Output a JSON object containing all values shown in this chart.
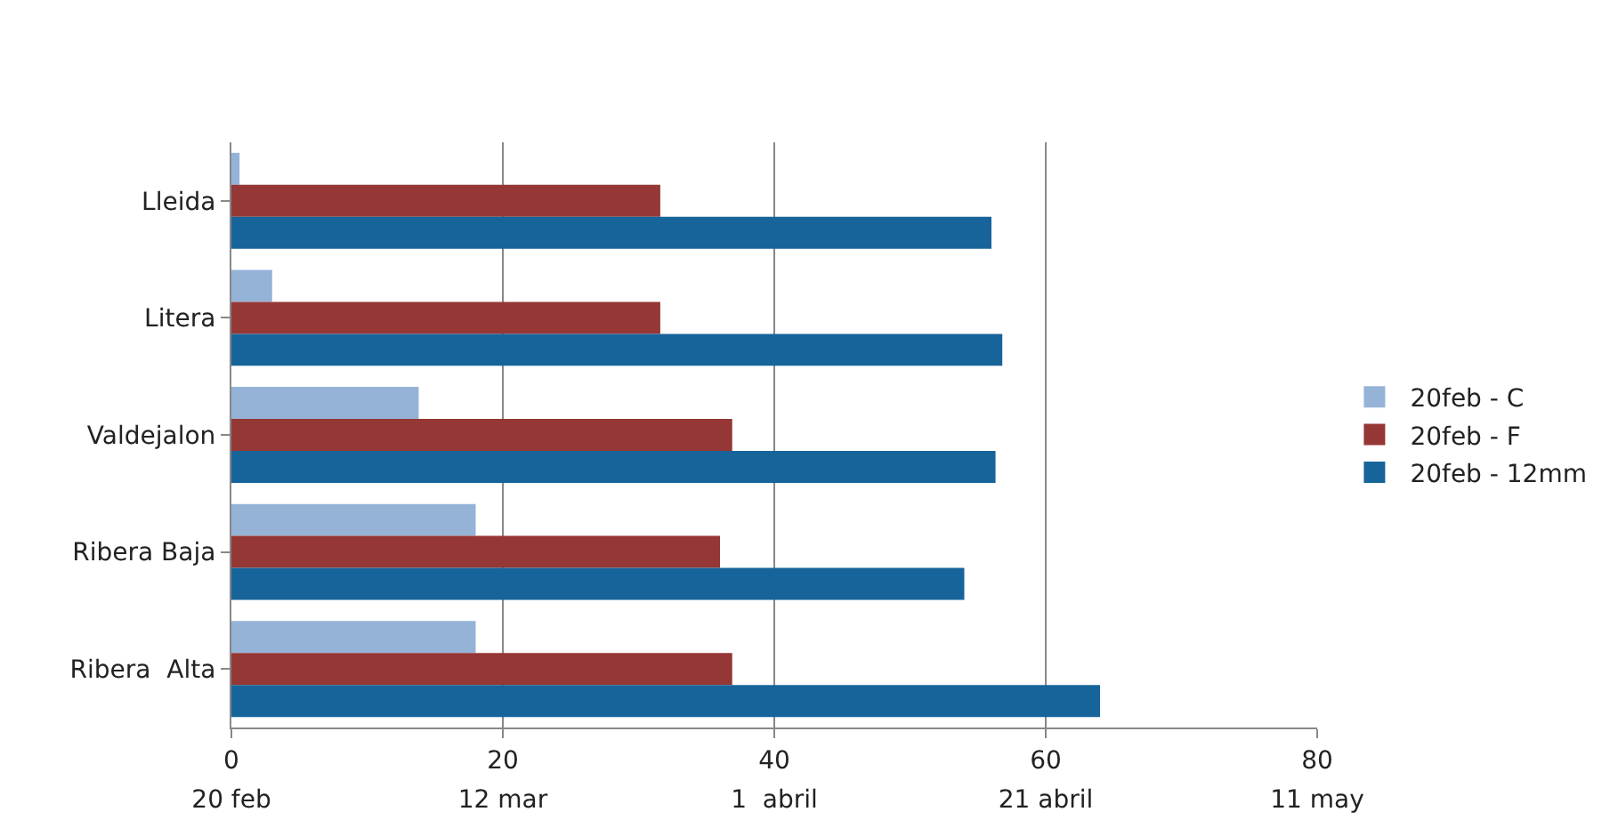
{
  "chart_data": {
    "type": "bar",
    "orientation": "horizontal",
    "categories": [
      "Lleida",
      "Litera",
      "Valdejalon",
      "Ribera Baja",
      "Ribera  Alta"
    ],
    "series": [
      {
        "name": "20feb - C",
        "color": "#95b3d7",
        "values": [
          0.6,
          3,
          13.8,
          18,
          18
        ]
      },
      {
        "name": "20feb - F",
        "color": "#953735",
        "values": [
          31.6,
          31.6,
          36.9,
          36,
          36.9
        ]
      },
      {
        "name": "20feb - 12mm",
        "color": "#17649a",
        "values": [
          56,
          56.8,
          56.3,
          54,
          64
        ]
      }
    ],
    "xlim": [
      0,
      80
    ],
    "xticks": [
      0,
      20,
      40,
      60,
      80
    ],
    "x2lim": [
      "--02-20",
      "--05-11"
    ],
    "x2ticks": [
      {
        "value": "--02-20",
        "label": "20 feb"
      },
      {
        "value": "--03-12",
        "label": "12 mar"
      },
      {
        "value": "--04-01",
        "label": "1  abril"
      },
      {
        "value": "--04-21",
        "label": "21 abril"
      },
      {
        "value": "--05-11",
        "label": "11 may"
      }
    ],
    "grid": "x",
    "legend": "right"
  }
}
